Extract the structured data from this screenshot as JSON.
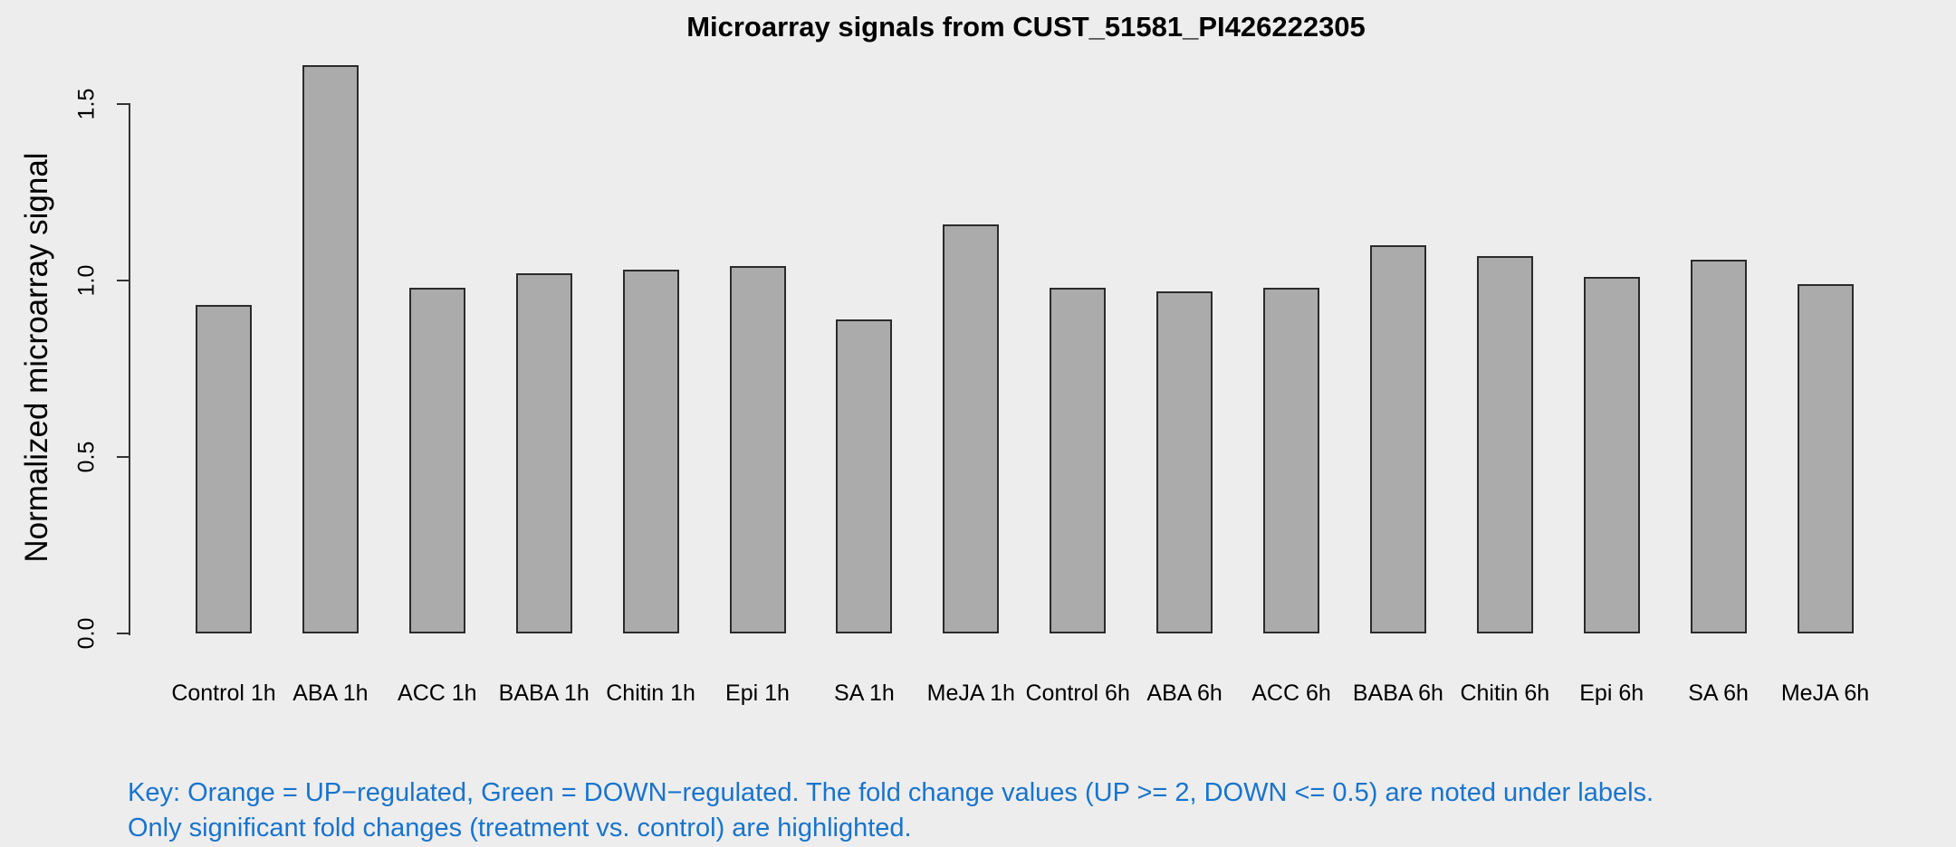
{
  "chart_data": {
    "type": "bar",
    "title": "Microarray signals from CUST_51581_PI426222305",
    "xlabel": "",
    "ylabel": "Normalized microarray signal",
    "ylim": [
      0,
      1.5
    ],
    "yticks": [
      0,
      0.5,
      1.0,
      1.5
    ],
    "ytick_labels": [
      "0.0",
      "0.5",
      "1.0",
      "1.5"
    ],
    "grid": false,
    "legend_position": "none",
    "categories": [
      "Control 1h",
      "ABA 1h",
      "ACC 1h",
      "BABA 1h",
      "Chitin 1h",
      "Epi 1h",
      "SA 1h",
      "MeJA 1h",
      "Control 6h",
      "ABA 6h",
      "ACC 6h",
      "BABA 6h",
      "Chitin 6h",
      "Epi 6h",
      "SA 6h",
      "MeJA 6h"
    ],
    "values": [
      0.93,
      1.61,
      0.98,
      1.02,
      1.03,
      1.04,
      0.89,
      1.16,
      0.98,
      0.97,
      0.98,
      1.1,
      1.07,
      1.01,
      1.06,
      0.99
    ]
  },
  "key": {
    "line1": "Key: Orange = UP−regulated, Green = DOWN−regulated. The fold change values (UP >= 2, DOWN <= 0.5) are noted under labels.",
    "line2": "Only significant fold changes (treatment vs. control) are highlighted."
  },
  "colors": {
    "background": "#EDEDED",
    "bar_fill": "#ABABAB",
    "bar_border": "#2B2B2B",
    "axis": "#333333",
    "title_text": "#000000",
    "key_text": "#1874CD"
  }
}
